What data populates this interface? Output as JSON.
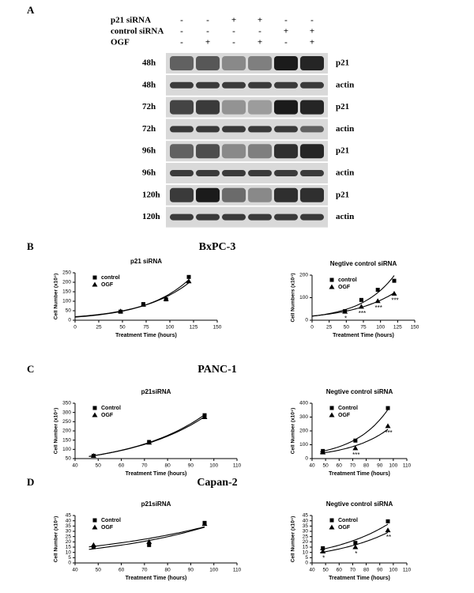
{
  "figure_a": {
    "letter": "A",
    "header_rows": [
      {
        "label": "p21 siRNA",
        "signs": [
          "-",
          "-",
          "+",
          "+",
          "-",
          "-"
        ]
      },
      {
        "label": "control siRNA",
        "signs": [
          "-",
          "-",
          "-",
          "-",
          "+",
          "+"
        ]
      },
      {
        "label": "OGF",
        "signs": [
          "-",
          "+",
          "-",
          "+",
          "-",
          "+"
        ]
      }
    ],
    "rows": [
      {
        "time": "48h",
        "protein": "p21"
      },
      {
        "time": "48h",
        "protein": "actin"
      },
      {
        "time": "72h",
        "protein": "p21"
      },
      {
        "time": "72h",
        "protein": "actin"
      },
      {
        "time": "96h",
        "protein": "p21"
      },
      {
        "time": "96h",
        "protein": "actin"
      },
      {
        "time": "120h",
        "protein": "p21"
      },
      {
        "time": "120h",
        "protein": "actin"
      }
    ]
  },
  "sections": [
    {
      "letter": "B",
      "title": "BxPC-3"
    },
    {
      "letter": "C",
      "title": "PANC-1"
    },
    {
      "letter": "D",
      "title": "Capan-2"
    }
  ],
  "chart_data": [
    {
      "type": "scatter",
      "title": "p21 siRNA",
      "x_label": "Treatment Time (hours)",
      "y_label": "Cell Number (x10⁴)",
      "x": [
        48,
        72,
        96,
        120
      ],
      "xlim": [
        0,
        150
      ],
      "xticks": [
        0,
        25,
        50,
        75,
        100,
        125,
        150
      ],
      "ylim": [
        0,
        250
      ],
      "yticks": [
        0,
        50,
        100,
        150,
        200,
        250
      ],
      "series": [
        {
          "name": "control",
          "marker": "square",
          "color": "#000000",
          "values": [
            45,
            85,
            110,
            228
          ]
        },
        {
          "name": "OGF",
          "marker": "triangle",
          "color": "#000000",
          "values": [
            47,
            82,
            112,
            205
          ]
        }
      ]
    },
    {
      "type": "scatter",
      "title": "Negtive control siRNA",
      "x_label": "Treatment Time (hours)",
      "y_label": "Cell Numbers (x10⁴)",
      "x": [
        48,
        72,
        96,
        120
      ],
      "xlim": [
        0,
        150
      ],
      "xticks": [
        0,
        25,
        50,
        75,
        100,
        125,
        150
      ],
      "ylim": [
        0,
        200
      ],
      "yticks": [
        0,
        100,
        200
      ],
      "series": [
        {
          "name": "control",
          "marker": "square",
          "color": "#000000",
          "values": [
            40,
            90,
            135,
            175
          ]
        },
        {
          "name": "OGF",
          "marker": "triangle",
          "color": "#000000",
          "values": [
            38,
            60,
            85,
            118
          ],
          "significance": [
            "*",
            "***",
            "***",
            "***"
          ]
        }
      ]
    },
    {
      "type": "scatter",
      "title": "p21siRNA",
      "x_label": "Treatment Time (hours)",
      "y_label": "Cell Number (x10⁴)",
      "x": [
        48,
        72,
        96
      ],
      "xlim": [
        40,
        110
      ],
      "xticks": [
        40,
        50,
        60,
        70,
        80,
        90,
        100,
        110
      ],
      "ylim": [
        50,
        350
      ],
      "yticks": [
        50,
        100,
        150,
        200,
        250,
        300,
        350
      ],
      "series": [
        {
          "name": "Control",
          "marker": "square",
          "color": "#000000",
          "values": [
            65,
            140,
            285
          ]
        },
        {
          "name": "OGF",
          "marker": "triangle",
          "color": "#000000",
          "values": [
            65,
            137,
            275
          ]
        }
      ]
    },
    {
      "type": "scatter",
      "title": "Negtive control siRNA",
      "x_label": "Treatment Time (hours)",
      "y_label": "Cell Number (x10⁴)",
      "x": [
        48,
        72,
        96
      ],
      "xlim": [
        40,
        110
      ],
      "xticks": [
        40,
        50,
        60,
        70,
        80,
        90,
        100,
        110
      ],
      "ylim": [
        0,
        400
      ],
      "yticks": [
        0,
        100,
        200,
        300,
        400
      ],
      "series": [
        {
          "name": "Control",
          "marker": "square",
          "color": "#000000",
          "values": [
            55,
            130,
            365
          ]
        },
        {
          "name": "OGF",
          "marker": "triangle",
          "color": "#000000",
          "values": [
            45,
            75,
            235
          ],
          "significance": [
            null,
            "***",
            "***"
          ]
        }
      ]
    },
    {
      "type": "scatter",
      "title": "p21siRNA",
      "x_label": "Treatment Time (hours)",
      "y_label": "Cell Number (x10⁴)",
      "x": [
        48,
        72,
        96
      ],
      "xlim": [
        40,
        110
      ],
      "xticks": [
        40,
        50,
        60,
        70,
        80,
        90,
        100,
        110
      ],
      "ylim": [
        0,
        45
      ],
      "yticks": [
        0,
        5,
        10,
        15,
        20,
        25,
        30,
        35,
        40,
        45
      ],
      "series": [
        {
          "name": "Control",
          "marker": "square",
          "color": "#000000",
          "values": [
            15,
            17,
            38
          ]
        },
        {
          "name": "OGF",
          "marker": "triangle",
          "color": "#000000",
          "values": [
            17,
            20,
            37
          ]
        }
      ]
    },
    {
      "type": "scatter",
      "title": "Negtive control siRNA",
      "x_label": "Treatment Time (hours)",
      "y_label": "Cell Number (x10⁴)",
      "x": [
        48,
        72,
        96
      ],
      "xlim": [
        40,
        110
      ],
      "xticks": [
        40,
        50,
        60,
        70,
        80,
        90,
        100,
        110
      ],
      "ylim": [
        0,
        45
      ],
      "yticks": [
        0,
        5,
        10,
        15,
        20,
        25,
        30,
        35,
        40,
        45
      ],
      "series": [
        {
          "name": "Control",
          "marker": "square",
          "color": "#000000",
          "values": [
            14,
            19,
            39.5
          ]
        },
        {
          "name": "OGF",
          "marker": "triangle",
          "color": "#000000",
          "values": [
            11,
            15,
            31
          ],
          "significance": [
            "*",
            "*",
            "**"
          ]
        }
      ]
    }
  ]
}
